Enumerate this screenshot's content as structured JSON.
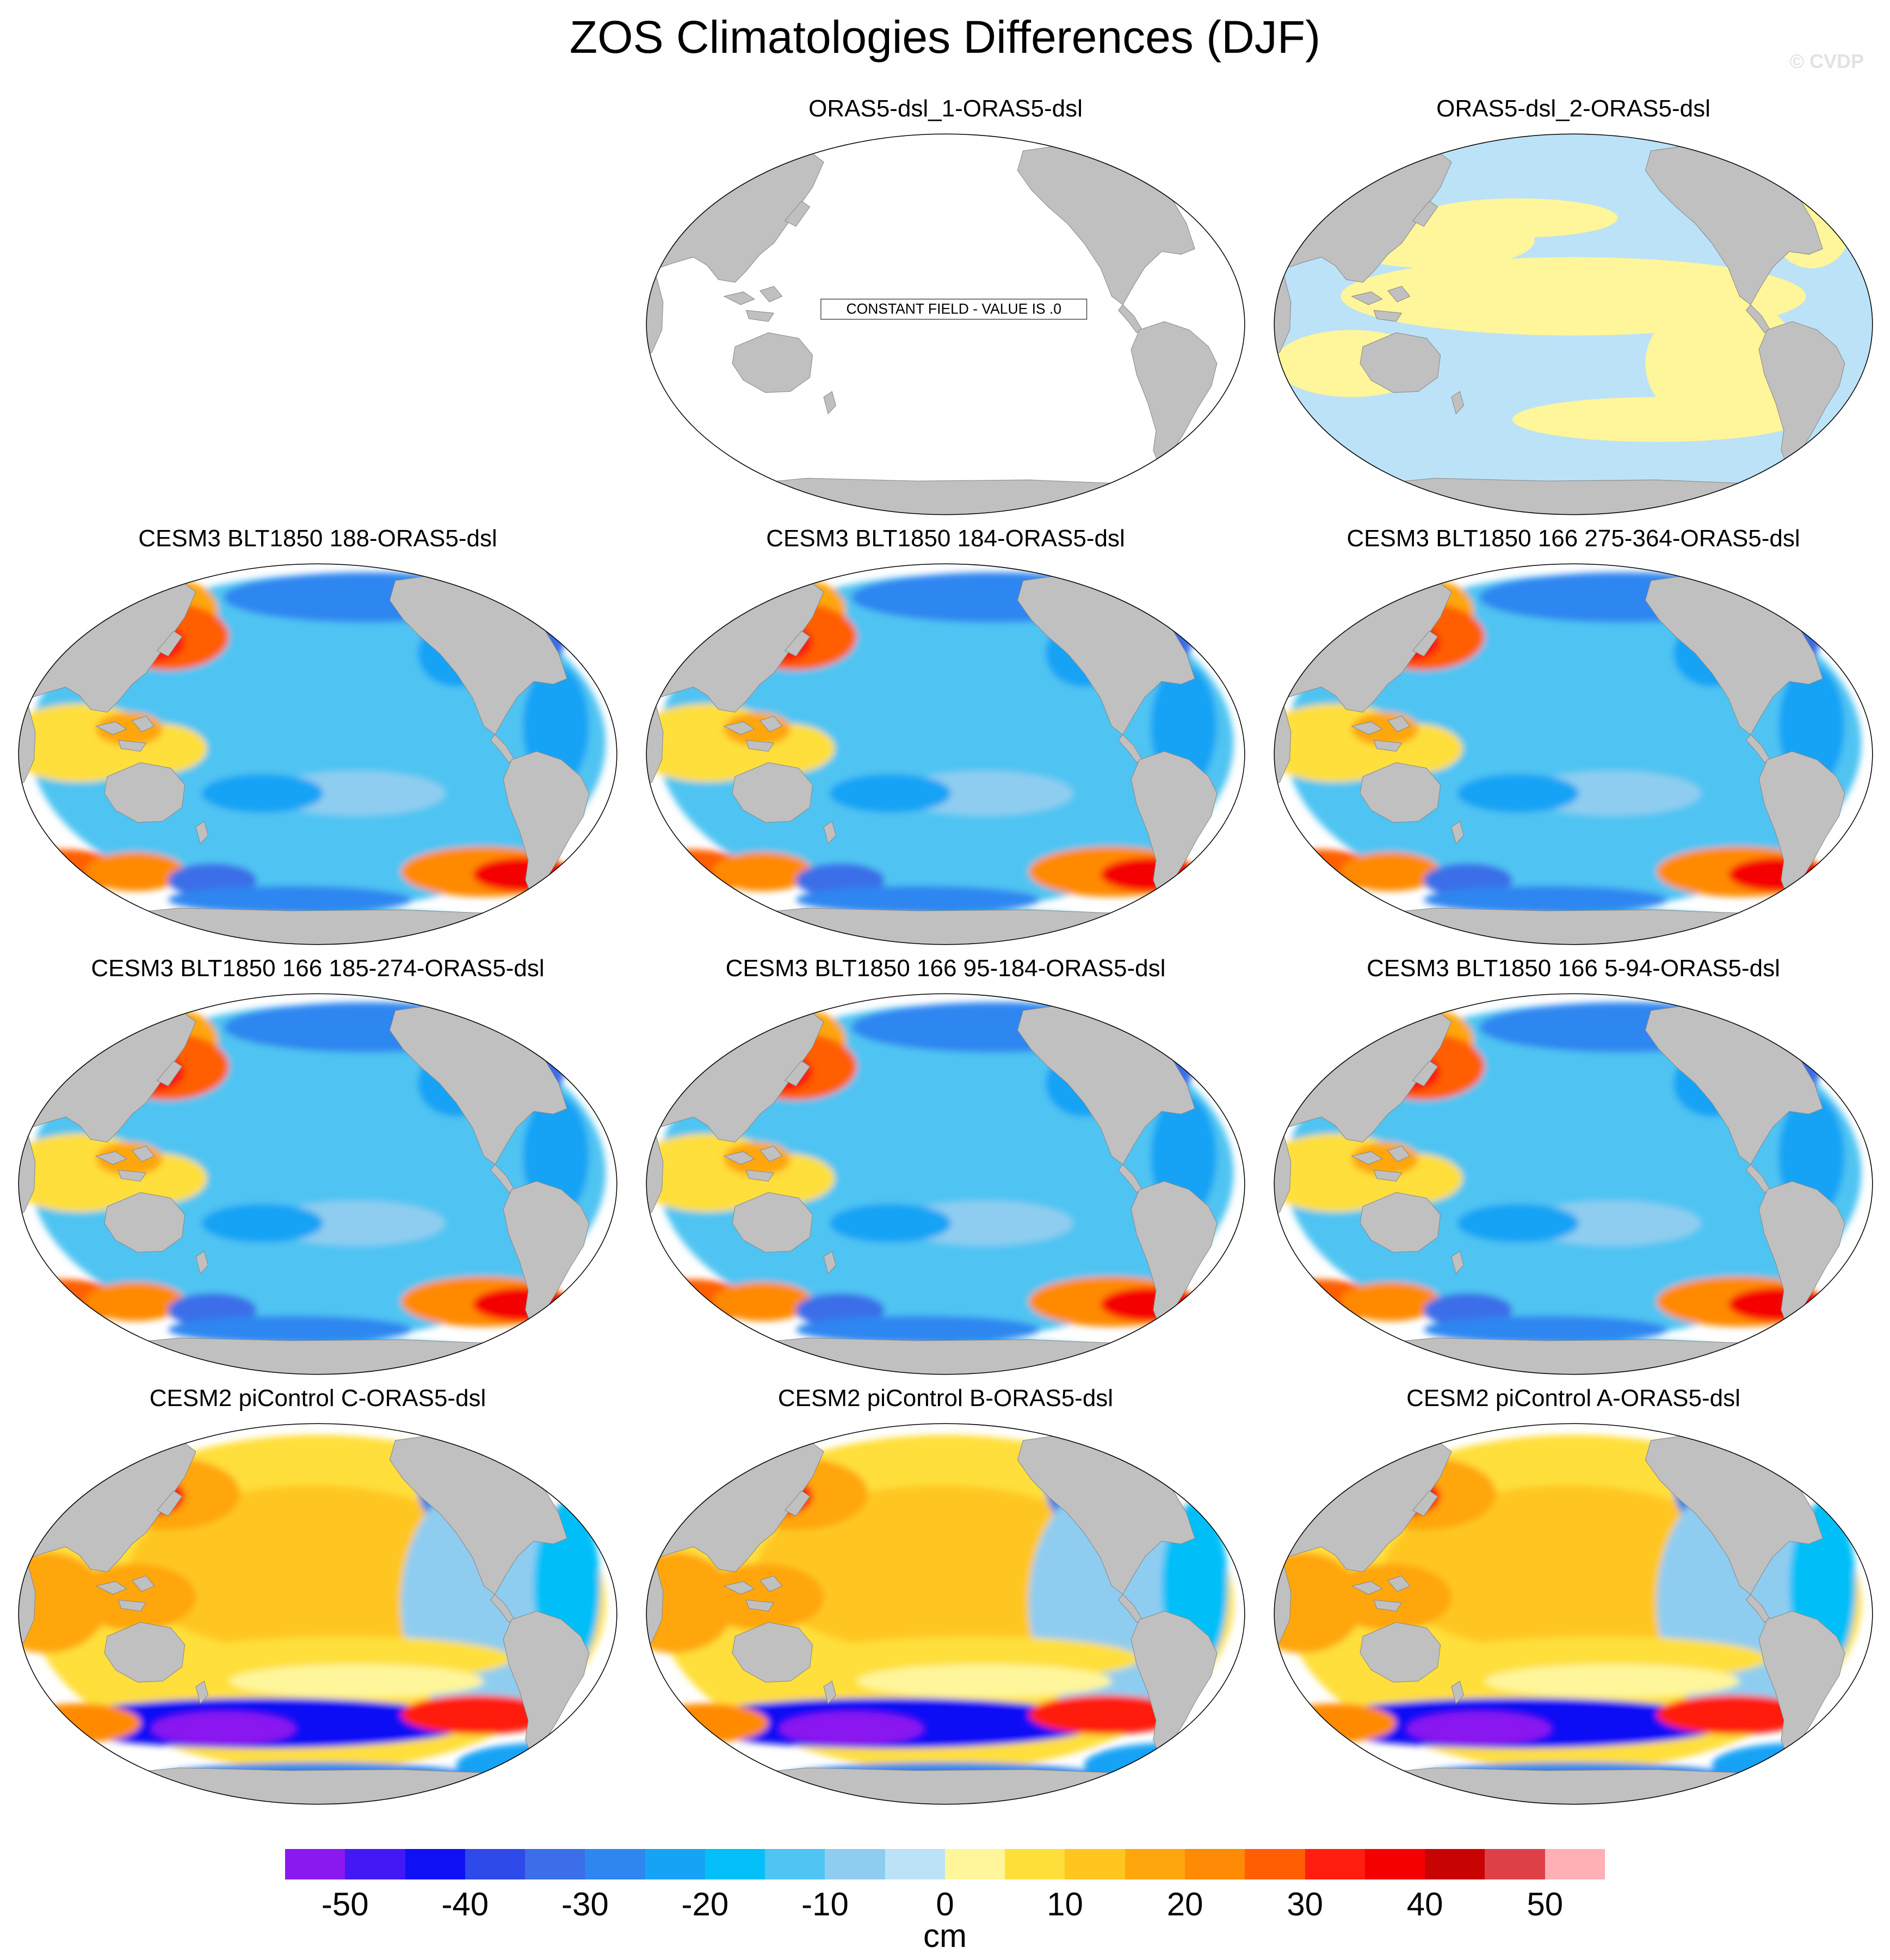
{
  "title": "ZOS Climatologies Differences (DJF)",
  "watermark": "© CVDP",
  "chart_data": {
    "type": "heatmap",
    "title": "ZOS Climatologies Differences (DJF)",
    "projection": "robinson (pacific-centered)",
    "panels": [
      {
        "label": "ORAS5-dsl_1-ORAS5-dsl",
        "pattern": "constant",
        "annotation": "CONSTANT FIELD - VALUE IS .0"
      },
      {
        "label": "ORAS5-dsl_2-ORAS5-dsl",
        "pattern": "near-zero"
      },
      {
        "label": "CESM3 BLT1850 188-ORAS5-dsl",
        "pattern": "cesm3"
      },
      {
        "label": "CESM3 BLT1850 184-ORAS5-dsl",
        "pattern": "cesm3"
      },
      {
        "label": "CESM3 BLT1850 166 275-364-ORAS5-dsl",
        "pattern": "cesm3"
      },
      {
        "label": "CESM3 BLT1850 166 185-274-ORAS5-dsl",
        "pattern": "cesm3"
      },
      {
        "label": "CESM3 BLT1850 166 95-184-ORAS5-dsl",
        "pattern": "cesm3"
      },
      {
        "label": "CESM3 BLT1850 166 5-94-ORAS5-dsl",
        "pattern": "cesm3"
      },
      {
        "label": "CESM2 piControl C-ORAS5-dsl",
        "pattern": "cesm2"
      },
      {
        "label": "CESM2 piControl B-ORAS5-dsl",
        "pattern": "cesm2"
      },
      {
        "label": "CESM2 piControl A-ORAS5-dsl",
        "pattern": "cesm2"
      }
    ],
    "colorbar": {
      "unit": "cm",
      "min": -55,
      "max": 55,
      "step": 5,
      "tick_labels": [
        "-50",
        "-40",
        "-30",
        "-20",
        "-10",
        "0",
        "10",
        "20",
        "30",
        "40",
        "50"
      ],
      "colors": [
        "#8a19f0",
        "#4318f5",
        "#1010f5",
        "#2e4ae8",
        "#3b6ee8",
        "#2f86f0",
        "#17a3f5",
        "#05bff8",
        "#4fc4f2",
        "#8fcdf0",
        "#bce2f7",
        "#fff59a",
        "#ffdf3a",
        "#ffc620",
        "#ffa60f",
        "#ff8a05",
        "#ff5e03",
        "#ff1e0f",
        "#f50000",
        "#c80303",
        "#df4048",
        "#ffb0b5"
      ]
    },
    "land_color": "#c0c0c0"
  }
}
